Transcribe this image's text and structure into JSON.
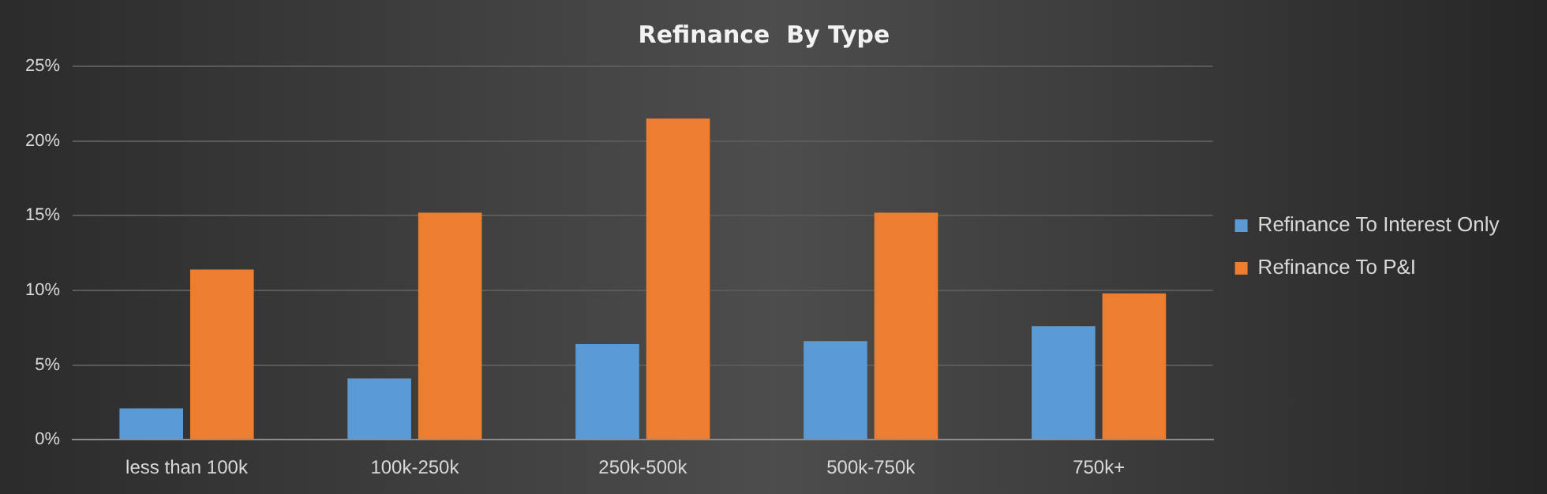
{
  "chart_data": {
    "type": "bar",
    "title": "Refinance  By Type",
    "categories": [
      "less than 100k",
      "100k-250k",
      "250k-500k",
      "500k-750k",
      "750k+"
    ],
    "series": [
      {
        "name": "Refinance To Interest Only",
        "color": "#5b9bd5",
        "values": [
          2.1,
          4.1,
          6.4,
          6.6,
          7.6
        ]
      },
      {
        "name": "Refinance To P&I",
        "color": "#ed7d31",
        "values": [
          11.4,
          15.2,
          21.5,
          15.2,
          9.8
        ]
      }
    ],
    "ylim": [
      0,
      25
    ],
    "yticks": [
      {
        "value": 0,
        "label": "0%"
      },
      {
        "value": 5,
        "label": "5%"
      },
      {
        "value": 10,
        "label": "10%"
      },
      {
        "value": 15,
        "label": "15%"
      },
      {
        "value": 20,
        "label": "20%"
      },
      {
        "value": 25,
        "label": "25%"
      }
    ],
    "grid": "y",
    "legend": "right"
  }
}
